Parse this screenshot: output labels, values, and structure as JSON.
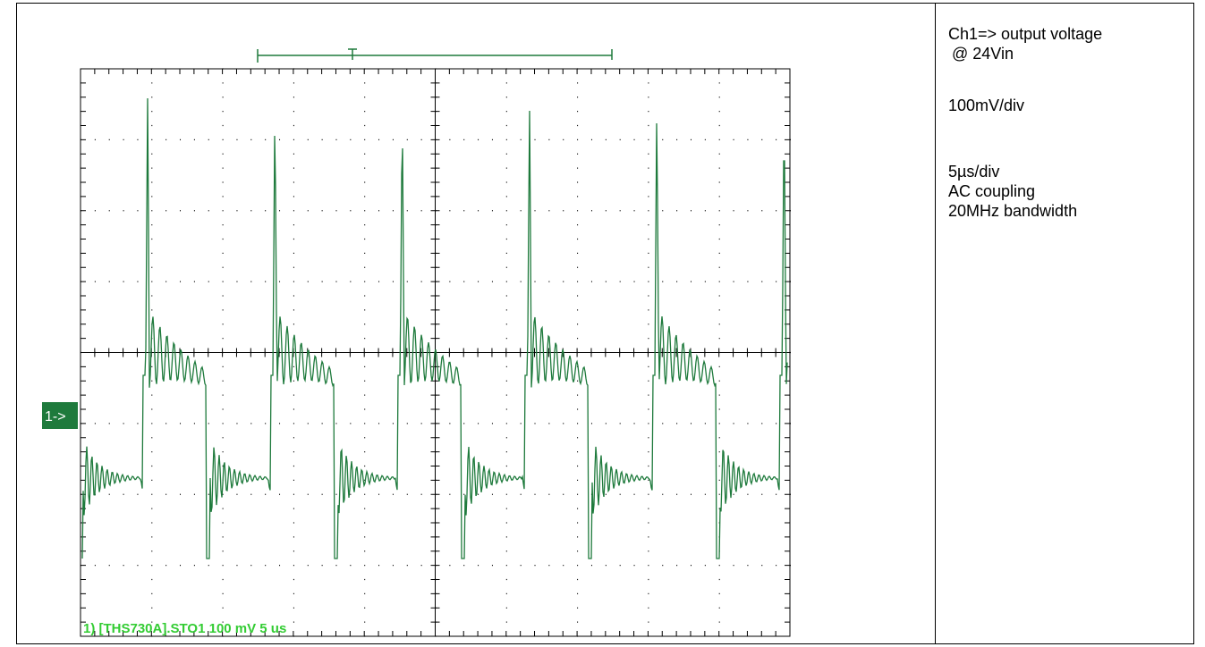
{
  "scope": {
    "channel_marker": "1->",
    "status_line": "1) [THS730A].STO1 100 mV  5 us"
  },
  "notes": [
    "Ch1=> output voltage",
    "@ 24Vin",
    "100mV/div",
    "5µs/div",
    "AC coupling",
    "20MHz bandwidth"
  ]
}
